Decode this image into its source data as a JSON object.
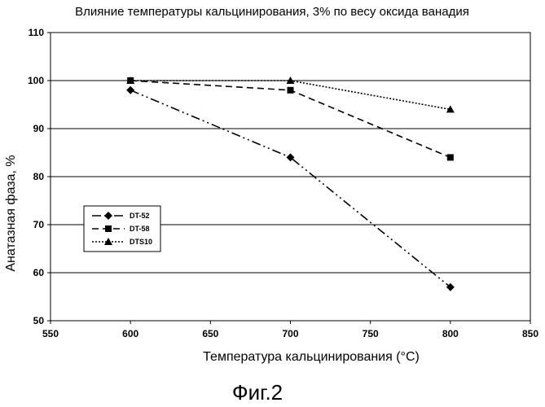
{
  "chart_data": {
    "type": "line",
    "title": "Влияние температуры кальцинирования, 3% по весу оксида ванадия",
    "xlabel": "Температура кальцинирования (°C)",
    "ylabel": "Анатазная фаза, %",
    "xlim": [
      550,
      850
    ],
    "ylim": [
      50,
      110
    ],
    "xticks": [
      "550",
      "600",
      "650",
      "700",
      "750",
      "800",
      "850"
    ],
    "yticks": [
      "50",
      "60",
      "70",
      "80",
      "90",
      "100",
      "110"
    ],
    "grid": "horizontal",
    "legend_position": "left",
    "series": [
      {
        "name": "DT-52",
        "x": [
          600,
          700,
          800
        ],
        "values": [
          98,
          84,
          57
        ],
        "marker": "diamond",
        "line": "dash-dot-dot",
        "color": "#000000"
      },
      {
        "name": "DT-58",
        "x": [
          600,
          700,
          800
        ],
        "values": [
          100,
          98,
          84
        ],
        "marker": "square",
        "line": "dashed",
        "color": "#000000"
      },
      {
        "name": "DTS10",
        "x": [
          600,
          700,
          800
        ],
        "values": [
          100,
          100,
          94
        ],
        "marker": "triangle",
        "line": "dotted",
        "color": "#000000"
      }
    ]
  },
  "figure_caption": "Фиг.2"
}
